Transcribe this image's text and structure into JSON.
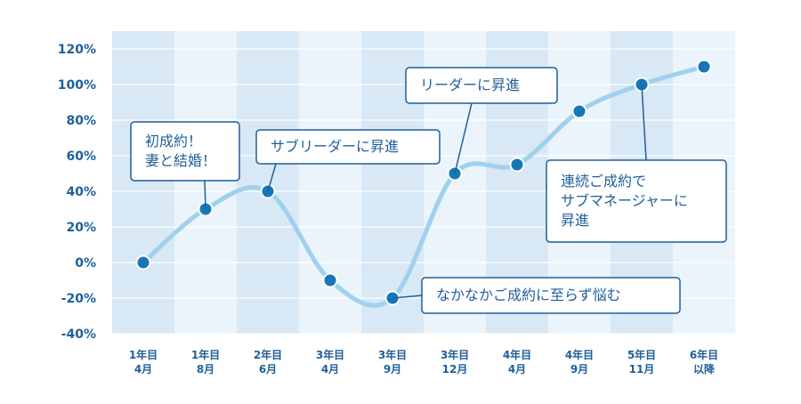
{
  "chart_data": {
    "type": "line",
    "categories": [
      [
        "1年目",
        "4月"
      ],
      [
        "1年目",
        "8月"
      ],
      [
        "2年目",
        "6月"
      ],
      [
        "3年目",
        "4月"
      ],
      [
        "3年目",
        "9月"
      ],
      [
        "3年目",
        "12月"
      ],
      [
        "4年目",
        "4月"
      ],
      [
        "4年目",
        "9月"
      ],
      [
        "5年目",
        "11月"
      ],
      [
        "6年目",
        "以降"
      ]
    ],
    "values": [
      0,
      30,
      40,
      -10,
      -20,
      50,
      55,
      85,
      100,
      110
    ],
    "ylim": [
      -40,
      120
    ],
    "yticks": [
      -40,
      -20,
      0,
      20,
      40,
      60,
      80,
      100,
      120
    ],
    "ytick_suffix": "%",
    "grid": true,
    "annotations": [
      {
        "point": 1,
        "lines": [
          "初成約！",
          "妻と結婚！"
        ]
      },
      {
        "point": 2,
        "lines": [
          "サブリーダーに昇進"
        ]
      },
      {
        "point": 4,
        "lines": [
          "なかなかご成約に至らず悩む"
        ]
      },
      {
        "point": 5,
        "lines": [
          "リーダーに昇進"
        ]
      },
      {
        "point": 8,
        "lines": [
          "連続ご成約で",
          "サブマネージャーに",
          "昇進"
        ]
      }
    ],
    "colors": {
      "band_dark": "#d9e8f5",
      "band_light": "#ebf4fb",
      "line": "#9fd0ee",
      "point": "#1677b8",
      "text": "#1f5f99",
      "grid": "#ffffff"
    }
  }
}
